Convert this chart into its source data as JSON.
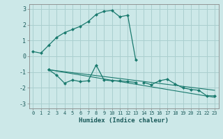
{
  "xlabel": "Humidex (Indice chaleur)",
  "background_color": "#cce8e8",
  "grid_color": "#aacfcf",
  "line_color": "#1a7a6e",
  "x_data": [
    0,
    1,
    2,
    3,
    4,
    5,
    6,
    7,
    8,
    9,
    10,
    11,
    12,
    13,
    14,
    15,
    16,
    17,
    18,
    19,
    20,
    21,
    22,
    23
  ],
  "line1": [
    0.3,
    0.2,
    0.7,
    1.2,
    1.5,
    1.7,
    1.9,
    2.2,
    2.65,
    2.85,
    2.9,
    2.5,
    2.6,
    -0.2,
    null,
    null,
    null,
    null,
    null,
    null,
    null,
    null,
    null,
    null
  ],
  "line2": [
    null,
    null,
    -0.85,
    -1.2,
    -1.7,
    -1.5,
    -1.6,
    -1.55,
    -0.55,
    -1.5,
    -1.55,
    -1.55,
    -1.6,
    -1.65,
    null,
    null,
    null,
    null,
    null,
    null,
    null,
    null,
    null,
    null
  ],
  "line3": [
    null,
    null,
    -0.85,
    null,
    null,
    null,
    null,
    null,
    null,
    null,
    null,
    null,
    null,
    null,
    -1.65,
    -1.8,
    -1.55,
    -1.45,
    -1.75,
    -2.0,
    -2.1,
    -2.15,
    -2.5,
    -2.5
  ],
  "trend1_x": [
    2,
    23
  ],
  "trend1_y": [
    -0.85,
    -2.6
  ],
  "trend2_x": [
    2,
    23
  ],
  "trend2_y": [
    -0.85,
    -2.15
  ],
  "ylim": [
    -3.3,
    3.3
  ],
  "yticks": [
    -3,
    -2,
    -1,
    0,
    1,
    2,
    3
  ],
  "xticks": [
    0,
    1,
    2,
    3,
    4,
    5,
    6,
    7,
    8,
    9,
    10,
    11,
    12,
    13,
    14,
    15,
    16,
    17,
    18,
    19,
    20,
    21,
    22,
    23
  ],
  "xlim": [
    -0.5,
    23.5
  ]
}
